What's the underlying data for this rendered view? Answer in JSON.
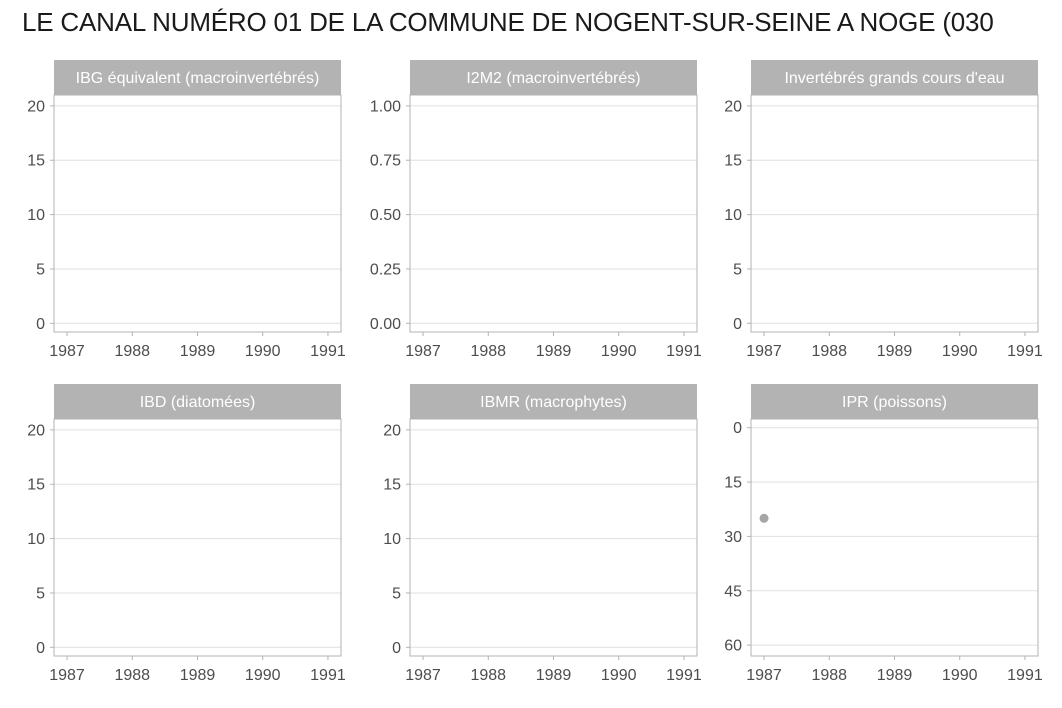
{
  "title": "LE CANAL NUMÉRO 01 DE LA COMMUNE DE NOGENT-SUR-SEINE A NOGE (030",
  "colors": {
    "strip": "#b3b3b3",
    "panel_border": "#b3b3b3",
    "grid": "#e0e0e0",
    "point": "#a6a6a6",
    "tick_text": "#4d4d4d"
  },
  "chart_data": [
    {
      "type": "scatter",
      "panel_title": "IBG équivalent (macroinvertébrés)",
      "x_ticks": [
        "1987",
        "1988",
        "1989",
        "1990",
        "1991"
      ],
      "xlim": [
        1986.8,
        1991.2
      ],
      "y_ticks": [
        "0",
        "5",
        "10",
        "15",
        "20"
      ],
      "ylim": [
        -0.8,
        21
      ],
      "y_reversed": false,
      "points": []
    },
    {
      "type": "scatter",
      "panel_title": "I2M2 (macroinvertébrés)",
      "x_ticks": [
        "1987",
        "1988",
        "1989",
        "1990",
        "1991"
      ],
      "xlim": [
        1986.8,
        1991.2
      ],
      "y_ticks": [
        "0.00",
        "0.25",
        "0.50",
        "0.75",
        "1.00"
      ],
      "ylim": [
        -0.04,
        1.05
      ],
      "y_reversed": false,
      "points": []
    },
    {
      "type": "scatter",
      "panel_title": "Invertébrés grands cours d'eau",
      "x_ticks": [
        "1987",
        "1988",
        "1989",
        "1990",
        "1991"
      ],
      "xlim": [
        1986.8,
        1991.2
      ],
      "y_ticks": [
        "0",
        "5",
        "10",
        "15",
        "20"
      ],
      "ylim": [
        -0.8,
        21
      ],
      "y_reversed": false,
      "points": []
    },
    {
      "type": "scatter",
      "panel_title": "IBD (diatomées)",
      "x_ticks": [
        "1987",
        "1988",
        "1989",
        "1990",
        "1991"
      ],
      "xlim": [
        1986.8,
        1991.2
      ],
      "y_ticks": [
        "0",
        "5",
        "10",
        "15",
        "20"
      ],
      "ylim": [
        -0.8,
        21
      ],
      "y_reversed": false,
      "points": []
    },
    {
      "type": "scatter",
      "panel_title": "IBMR (macrophytes)",
      "x_ticks": [
        "1987",
        "1988",
        "1989",
        "1990",
        "1991"
      ],
      "xlim": [
        1986.8,
        1991.2
      ],
      "y_ticks": [
        "0",
        "5",
        "10",
        "15",
        "20"
      ],
      "ylim": [
        -0.8,
        21
      ],
      "y_reversed": false,
      "points": []
    },
    {
      "type": "scatter",
      "panel_title": "IPR (poissons)",
      "x_ticks": [
        "1987",
        "1988",
        "1989",
        "1990",
        "1991"
      ],
      "xlim": [
        1986.8,
        1991.2
      ],
      "y_ticks": [
        "0",
        "15",
        "30",
        "45",
        "60"
      ],
      "ylim": [
        -2.4,
        63
      ],
      "y_reversed": true,
      "points": [
        {
          "x": 1987,
          "y": 25
        }
      ]
    }
  ]
}
